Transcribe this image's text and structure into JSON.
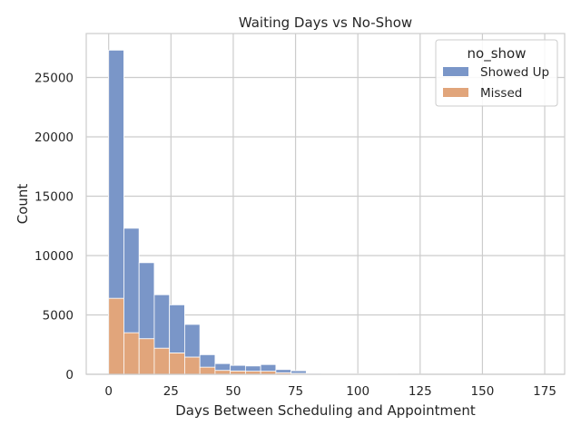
{
  "chart_data": {
    "type": "bar",
    "title": "Waiting Days vs No-Show",
    "xlabel": "Days Between Scheduling and Appointment",
    "ylabel": "Count",
    "xlim": [
      -9,
      183
    ],
    "ylim": [
      0,
      28700
    ],
    "x_ticks": [
      0,
      25,
      50,
      75,
      100,
      125,
      150,
      175
    ],
    "y_ticks": [
      0,
      5000,
      10000,
      15000,
      20000,
      25000
    ],
    "grid": true,
    "stacked": true,
    "bin_edges": [
      0,
      6.1,
      12.2,
      18.3,
      24.4,
      30.5,
      36.6,
      42.7,
      48.8,
      54.9,
      61.0,
      67.1,
      73.2,
      79.3,
      85.4,
      91.5,
      97.6,
      103.7,
      109.8,
      115.9,
      122.0,
      128.1,
      134.2,
      140.3,
      146.4,
      152.5,
      158.6,
      164.7,
      170.8,
      176.9,
      183
    ],
    "legend": {
      "title": "no_show",
      "position": "top-right"
    },
    "series": [
      {
        "name": "Missed",
        "color": "#e1a57b",
        "values": [
          6400,
          3500,
          3000,
          2200,
          1800,
          1450,
          600,
          330,
          280,
          260,
          260,
          130,
          80,
          25,
          20,
          15,
          12,
          10,
          8,
          6,
          5,
          5,
          4,
          4,
          3,
          3,
          2,
          2,
          2,
          1
        ]
      },
      {
        "name": "Showed Up",
        "color": "#7a96c8",
        "values": [
          20900,
          8800,
          6400,
          4500,
          4050,
          2750,
          1050,
          570,
          470,
          440,
          560,
          270,
          220,
          65,
          50,
          35,
          30,
          25,
          20,
          15,
          12,
          12,
          10,
          8,
          7,
          6,
          5,
          4,
          3,
          2
        ]
      }
    ]
  }
}
